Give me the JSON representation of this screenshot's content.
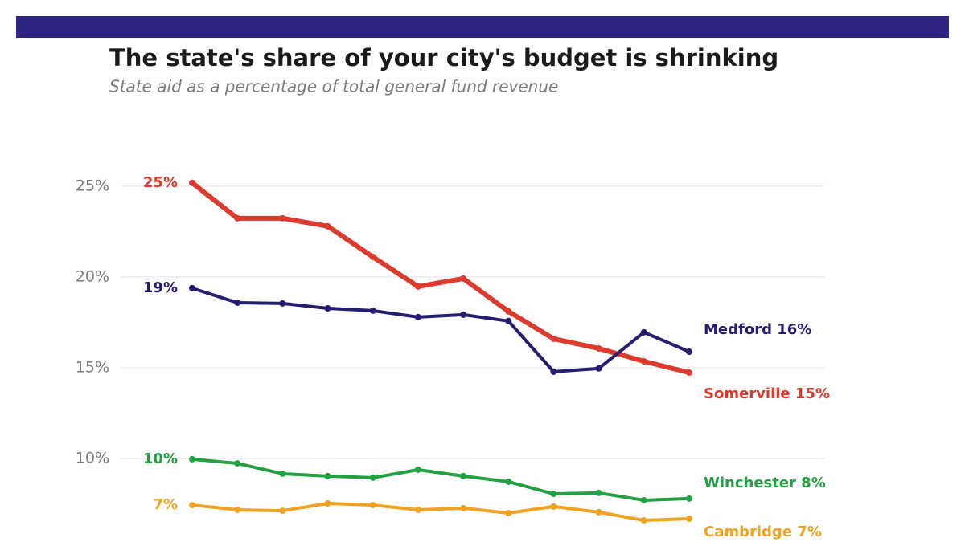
{
  "chart_data": {
    "type": "line",
    "title": "The state's share of your city's budget is shrinking",
    "subtitle": "State aid as a percentage of total general fund revenue",
    "categories": [
      null,
      null,
      null,
      null,
      null,
      null,
      null,
      null,
      null,
      null,
      null,
      null
    ],
    "ylim": [
      5.5,
      28
    ],
    "yticks": [
      {
        "value": 10,
        "label": "10%"
      },
      {
        "value": 15,
        "label": "15%"
      },
      {
        "value": 20,
        "label": "20%"
      },
      {
        "value": 25,
        "label": "25%"
      }
    ],
    "grid": true,
    "series": [
      {
        "name": "Cambridge",
        "color": "#f0a322",
        "linewidth": 4,
        "values": [
          7.43,
          7.17,
          7.12,
          7.52,
          7.43,
          7.17,
          7.26,
          6.99,
          7.35,
          7.04,
          6.59,
          6.68
        ],
        "value_labels": [
          "7%",
          null,
          null,
          null,
          null,
          null,
          null,
          null,
          null,
          null,
          null,
          "7%"
        ]
      },
      {
        "name": "Winchester",
        "color": "#23a042",
        "linewidth": 4,
        "values": [
          9.96,
          9.73,
          9.16,
          9.03,
          8.94,
          9.38,
          9.03,
          8.72,
          8.05,
          8.1,
          7.7,
          7.79
        ],
        "value_labels": [
          "10%",
          null,
          null,
          null,
          null,
          null,
          null,
          null,
          null,
          null,
          null,
          "8%"
        ]
      },
      {
        "name": "Somerville",
        "color": "#db3a2c",
        "linewidth": 6,
        "values": [
          25.18,
          23.23,
          23.23,
          22.79,
          21.1,
          19.47,
          19.91,
          18.1,
          16.59,
          16.06,
          15.35,
          14.73
        ],
        "value_labels": [
          "25%",
          null,
          null,
          null,
          null,
          null,
          null,
          null,
          null,
          null,
          null,
          "15%"
        ]
      },
      {
        "name": "Medford",
        "color": "#251d70",
        "linewidth": 4,
        "values": [
          19.38,
          18.58,
          18.54,
          18.27,
          18.14,
          17.79,
          17.92,
          17.57,
          14.78,
          14.96,
          16.95,
          15.88
        ],
        "value_labels": [
          "19%",
          null,
          null,
          null,
          null,
          null,
          null,
          null,
          null,
          null,
          null,
          "16%"
        ]
      }
    ]
  }
}
